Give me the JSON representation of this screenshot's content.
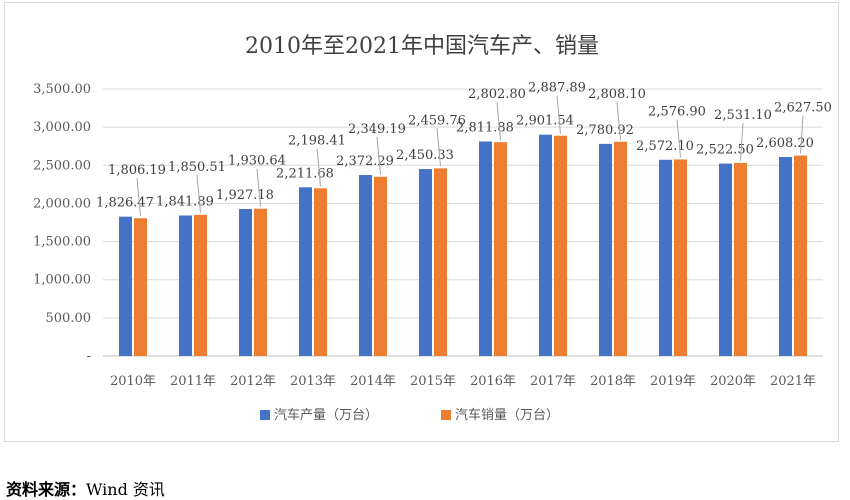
{
  "chart_data": {
    "type": "bar",
    "title": "2010年至2021年中国汽车产、销量",
    "categories": [
      "2010年",
      "2011年",
      "2012年",
      "2013年",
      "2014年",
      "2015年",
      "2016年",
      "2017年",
      "2018年",
      "2019年",
      "2020年",
      "2021年"
    ],
    "series": [
      {
        "name": "汽车产量（万台）",
        "color": "#4472C4",
        "values": [
          1826.47,
          1841.89,
          1927.18,
          2211.68,
          2372.29,
          2450.33,
          2811.88,
          2901.54,
          2780.92,
          2572.1,
          2522.5,
          2608.2
        ],
        "labels": [
          "1,826.47",
          "1,841.89",
          "1,927.18",
          "2,211.68",
          "2,372.29",
          "2,450.33",
          "2,811.88",
          "2,901.54",
          "2,780.92",
          "2,572.10",
          "2,522.50",
          "2,608.20"
        ]
      },
      {
        "name": "汽车销量（万台）",
        "color": "#ED7D31",
        "values": [
          1806.19,
          1850.51,
          1930.64,
          2198.41,
          2349.19,
          2459.76,
          2802.8,
          2887.89,
          2808.1,
          2576.9,
          2531.1,
          2627.5
        ],
        "labels": [
          "1,806.19",
          "1,850.51",
          "1,930.64",
          "2,198.41",
          "2,349.19",
          "2,459.76",
          "2,802.80",
          "2,887.89",
          "2,808.10",
          "2,576.90",
          "2,531.10",
          "2,627.50"
        ]
      }
    ],
    "ylim": [
      0,
      3500
    ],
    "yticks": [
      0,
      500,
      1000,
      1500,
      2000,
      2500,
      3000,
      3500
    ],
    "ytick_labels": [
      "-",
      "500.00",
      "1,000.00",
      "1,500.00",
      "2,000.00",
      "2,500.00",
      "3,000.00",
      "3,500.00"
    ],
    "grid": true,
    "legend_position": "bottom"
  },
  "source": {
    "label": "资料来源：",
    "text": "Wind 资讯"
  }
}
